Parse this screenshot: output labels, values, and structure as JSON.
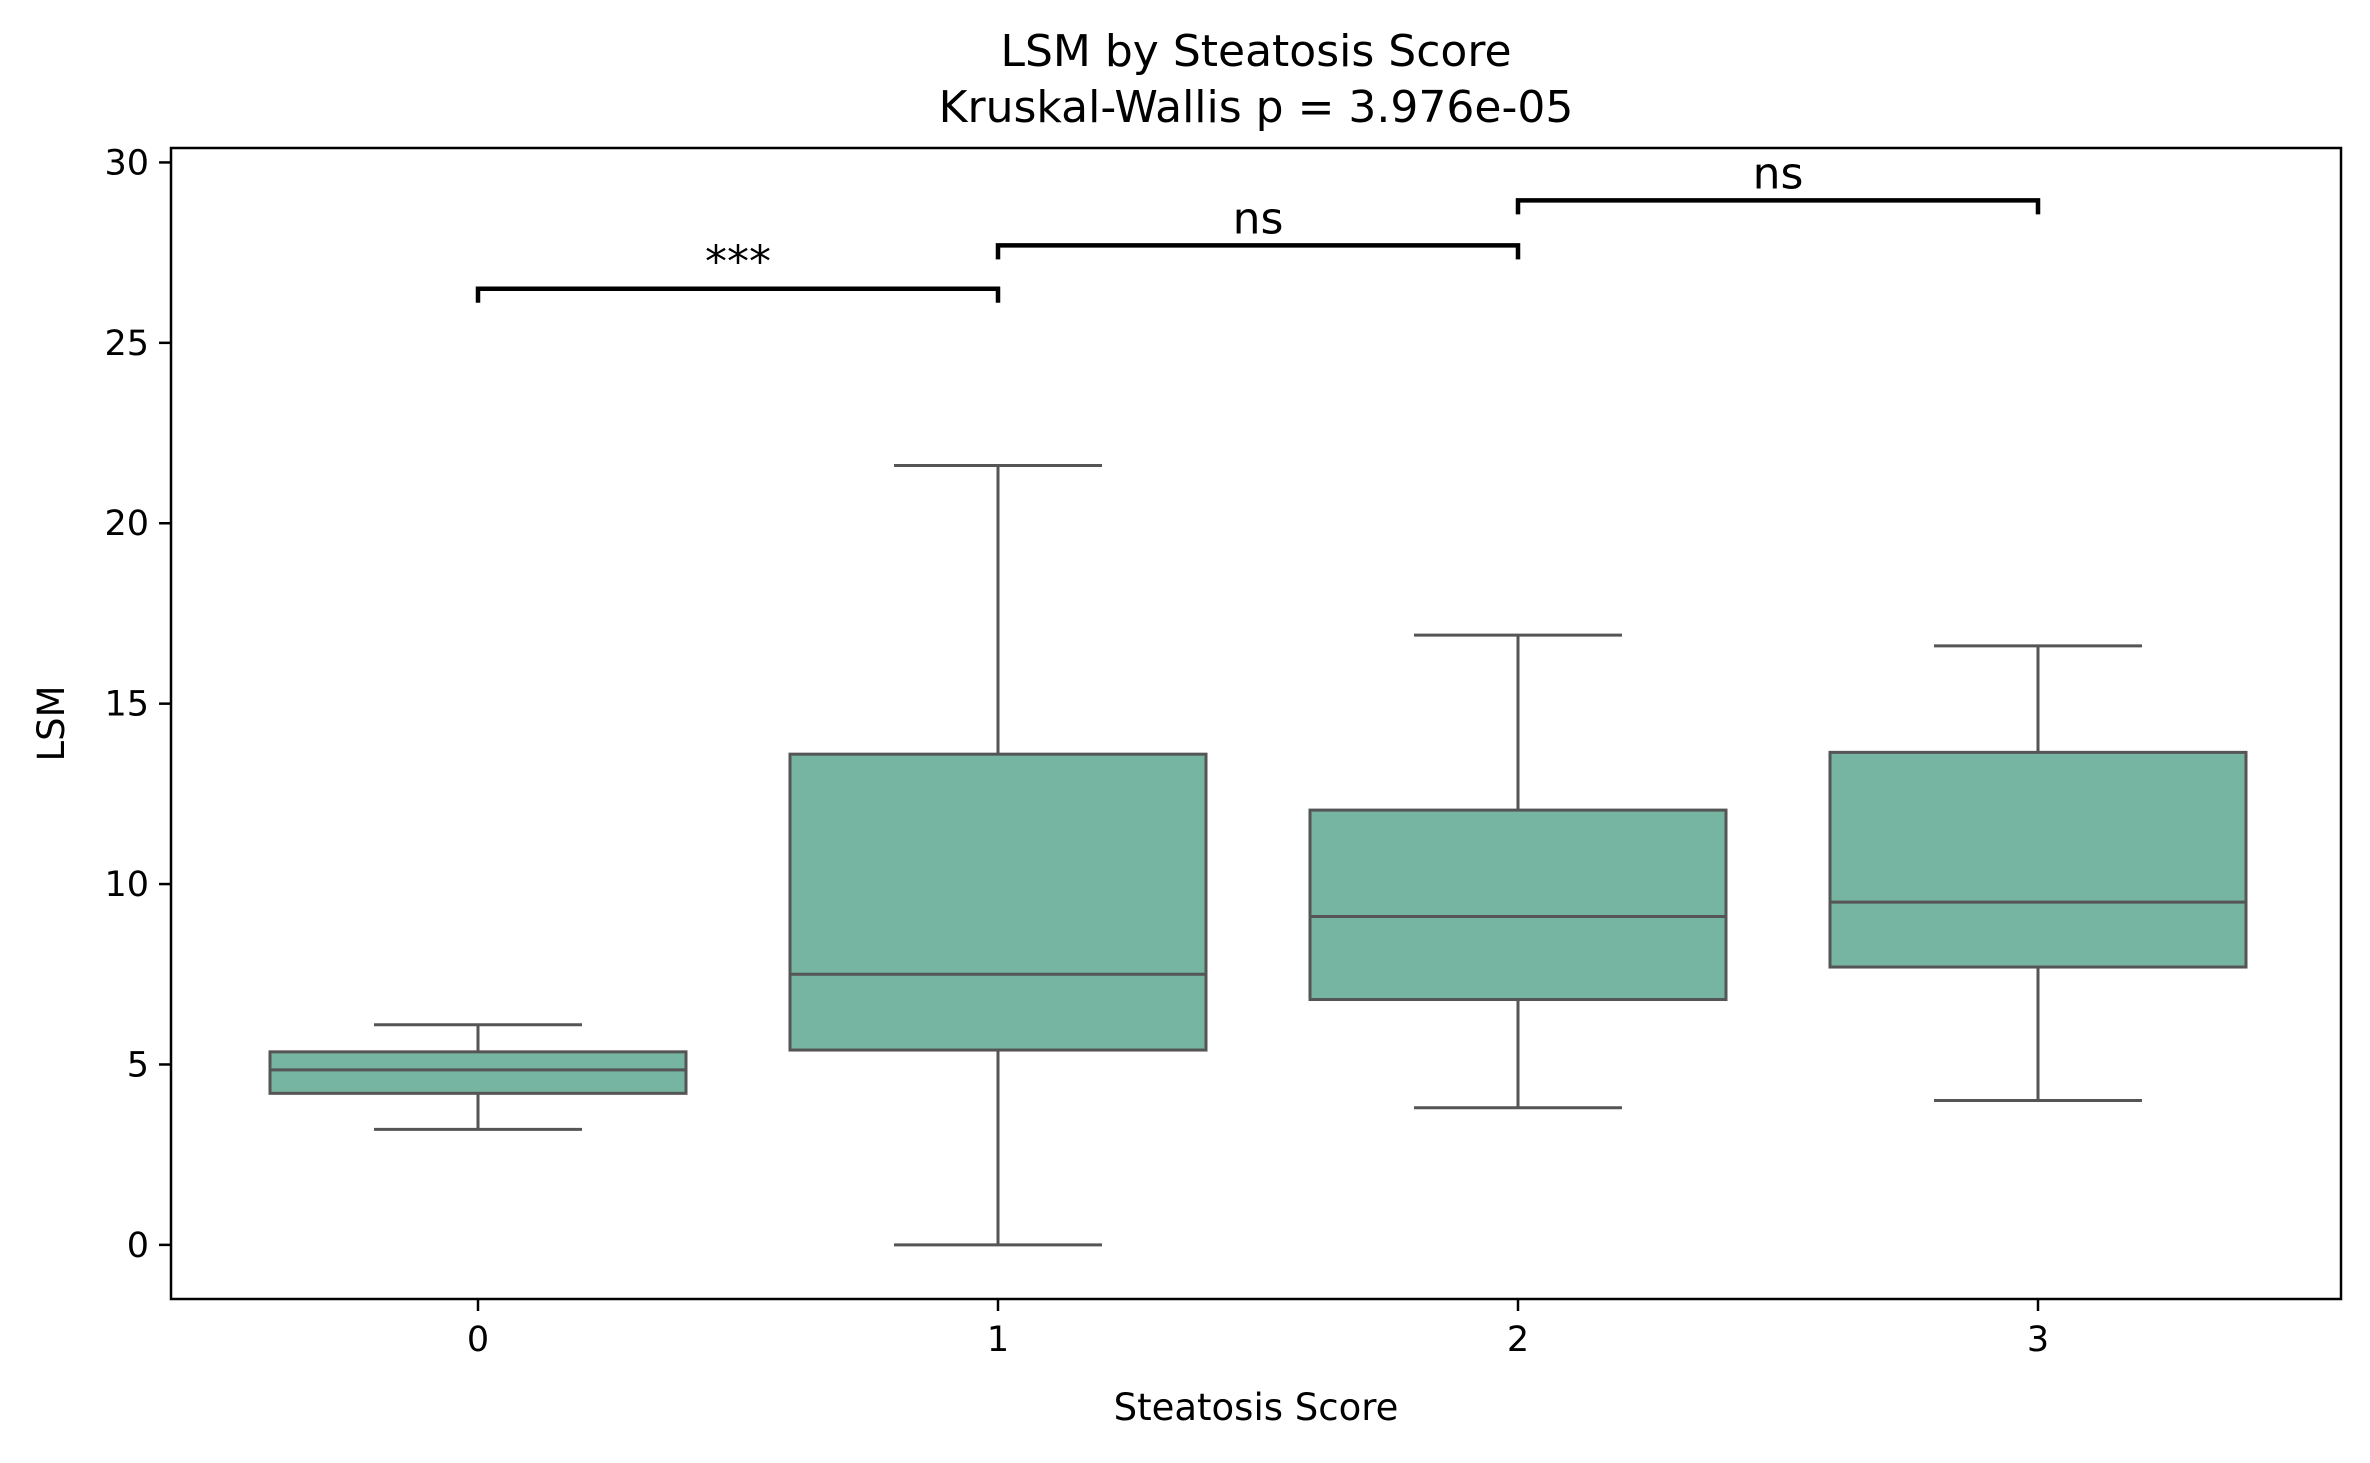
{
  "chart_data": {
    "type": "box",
    "title": "LSM by Steatosis Score",
    "subtitle": "Kruskal-Wallis p = 3.976e-05",
    "xlabel": "Steatosis Score",
    "ylabel": "LSM",
    "categories": [
      "0",
      "1",
      "2",
      "3"
    ],
    "ylim": [
      -1.5,
      30.4
    ],
    "yticks": [
      0,
      5,
      10,
      15,
      20,
      25,
      30
    ],
    "grid": false,
    "legend": "none",
    "box_color": "#75b5a1",
    "line_color": "#555555",
    "boxes": [
      {
        "category": "0",
        "whisker_low": 3.2,
        "q1": 4.2,
        "median": 4.85,
        "q3": 5.35,
        "whisker_high": 6.1
      },
      {
        "category": "1",
        "whisker_low": 0.0,
        "q1": 5.4,
        "median": 7.5,
        "q3": 13.6,
        "whisker_high": 21.6
      },
      {
        "category": "2",
        "whisker_low": 3.8,
        "q1": 6.8,
        "median": 9.1,
        "q3": 12.05,
        "whisker_high": 16.9
      },
      {
        "category": "3",
        "whisker_low": 4.0,
        "q1": 7.7,
        "median": 9.5,
        "q3": 13.65,
        "whisker_high": 16.6
      }
    ],
    "annotations": [
      {
        "from": "0",
        "to": "1",
        "y": 26.5,
        "label": "***"
      },
      {
        "from": "1",
        "to": "2",
        "y": 27.7,
        "label": "ns"
      },
      {
        "from": "2",
        "to": "3",
        "y": 28.95,
        "label": "ns"
      }
    ]
  }
}
